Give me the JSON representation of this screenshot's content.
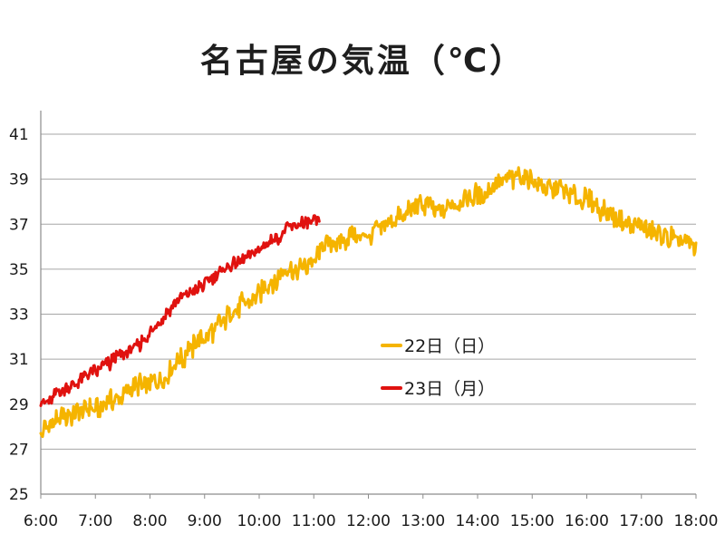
{
  "title": "名古屋の気温（℃）",
  "chart_data": {
    "type": "line",
    "title": "名古屋の気温（℃）",
    "xlabel": "",
    "ylabel": "",
    "x_ticks": [
      "6:00",
      "7:00",
      "8:00",
      "9:00",
      "10:00",
      "11:00",
      "12:00",
      "13:00",
      "14:00",
      "15:00",
      "16:00",
      "17:00",
      "18:00"
    ],
    "y_ticks": [
      25,
      27,
      29,
      31,
      33,
      35,
      37,
      39,
      41
    ],
    "xlim": [
      6,
      18
    ],
    "ylim": [
      25,
      41
    ],
    "grid": "horizontal",
    "legend_position": "center-right",
    "series": [
      {
        "name": "22日（日）",
        "color": "#F5B400",
        "x": [
          6.0,
          6.25,
          6.5,
          6.75,
          7.0,
          7.25,
          7.5,
          7.75,
          8.0,
          8.25,
          8.5,
          8.75,
          9.0,
          9.25,
          9.5,
          9.75,
          10.0,
          10.25,
          10.5,
          10.75,
          11.0,
          11.1,
          11.25,
          11.5,
          11.75,
          12.0,
          12.25,
          12.5,
          12.75,
          13.0,
          13.25,
          13.5,
          13.75,
          14.0,
          14.25,
          14.5,
          14.75,
          15.0,
          15.25,
          15.5,
          15.75,
          16.0,
          16.25,
          16.5,
          16.75,
          17.0,
          17.25,
          17.5,
          17.75,
          18.0
        ],
        "values": [
          27.7,
          28.2,
          28.5,
          28.6,
          28.8,
          29.1,
          29.5,
          29.8,
          29.9,
          30.3,
          30.8,
          31.5,
          32.0,
          32.5,
          33.0,
          33.6,
          34.0,
          34.4,
          34.8,
          35.1,
          35.3,
          35.9,
          36.1,
          36.3,
          36.4,
          36.5,
          36.8,
          37.2,
          37.6,
          37.9,
          37.5,
          37.8,
          38.0,
          38.3,
          38.6,
          38.9,
          39.1,
          38.9,
          38.7,
          38.5,
          38.3,
          38.1,
          37.7,
          37.3,
          37.0,
          36.8,
          36.6,
          36.4,
          36.2,
          36.1
        ]
      },
      {
        "name": "23日（月）",
        "color": "#E0120F",
        "x": [
          6.0,
          6.25,
          6.5,
          6.75,
          7.0,
          7.25,
          7.5,
          7.75,
          8.0,
          8.25,
          8.5,
          8.75,
          9.0,
          9.25,
          9.5,
          9.75,
          10.0,
          10.25,
          10.5,
          10.75,
          11.0,
          11.1
        ],
        "values": [
          29.0,
          29.4,
          29.8,
          30.1,
          30.4,
          30.8,
          31.2,
          31.6,
          32.1,
          32.9,
          33.5,
          34.0,
          34.3,
          34.8,
          35.2,
          35.6,
          35.9,
          36.3,
          36.7,
          37.0,
          37.1,
          37.2
        ]
      }
    ]
  }
}
